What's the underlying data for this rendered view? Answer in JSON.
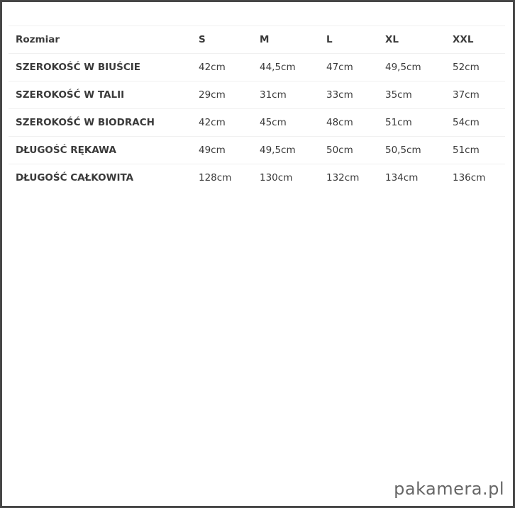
{
  "table": {
    "headers": [
      "Rozmiar",
      "S",
      "M",
      "L",
      "XL",
      "XXL"
    ],
    "rows": [
      [
        "SZEROKOŚĆ W BIUŚCIE",
        "42cm",
        "44,5cm",
        "47cm",
        "49,5cm",
        "52cm"
      ],
      [
        "SZEROKOŚĆ W TALII",
        "29cm",
        "31cm",
        "33cm",
        "35cm",
        "37cm"
      ],
      [
        "SZEROKOŚĆ W BIODRACH",
        "42cm",
        "45cm",
        "48cm",
        "51cm",
        "54cm"
      ],
      [
        "DŁUGOŚĆ RĘKAWA",
        "49cm",
        "49,5cm",
        "50cm",
        "50,5cm",
        "51cm"
      ],
      [
        "DŁUGOŚĆ CAŁKOWITA",
        "128cm",
        "130cm",
        "132cm",
        "134cm",
        "136cm"
      ]
    ]
  },
  "watermark": "pakamera.pl"
}
